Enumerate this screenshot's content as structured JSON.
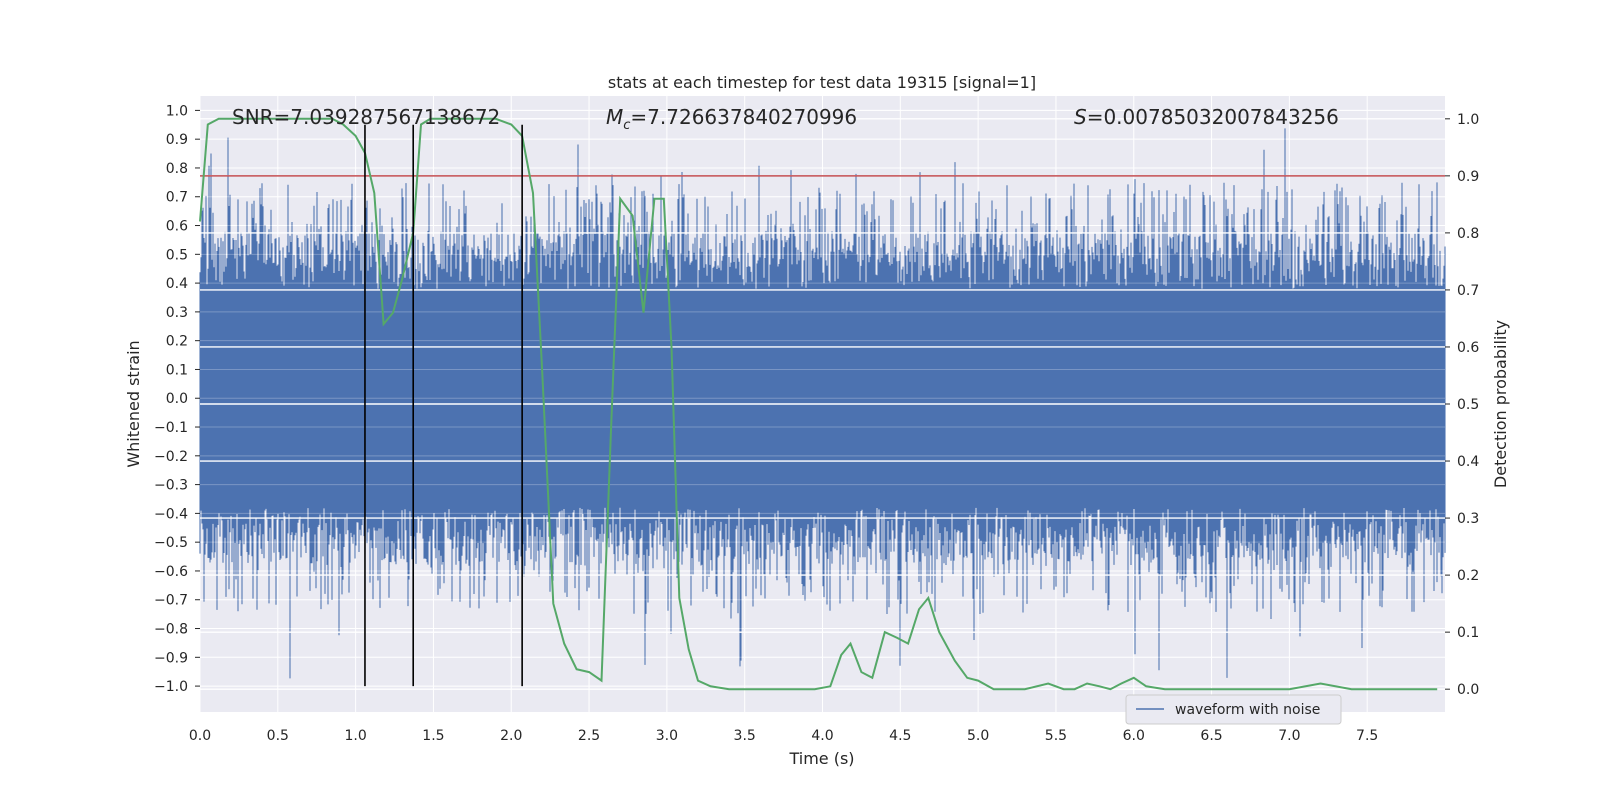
{
  "chart_data": {
    "type": "line",
    "title": "stats at each timestep for test data 19315 [signal=1]",
    "xlabel": "Time (s)",
    "ylabel": "Whitened strain",
    "y2label": "Detection probability",
    "xlim": [
      0.0,
      8.0
    ],
    "ylim": [
      -1.09,
      1.05
    ],
    "y2lim": [
      -0.04,
      1.04
    ],
    "xticks": [
      "0.0",
      "0.5",
      "1.0",
      "1.5",
      "2.0",
      "2.5",
      "3.0",
      "3.5",
      "4.0",
      "4.5",
      "5.0",
      "5.5",
      "6.0",
      "6.5",
      "7.0",
      "7.5"
    ],
    "yticks": [
      "1.0",
      "0.9",
      "0.8",
      "0.7",
      "0.6",
      "0.5",
      "0.4",
      "0.3",
      "0.2",
      "0.1",
      "0.0",
      "-0.1",
      "-0.2",
      "-0.3",
      "-0.4",
      "-0.5",
      "-0.6",
      "-0.7",
      "-0.8",
      "-0.9",
      "-1.0"
    ],
    "y2ticks": [
      "1.0",
      "0.9",
      "0.8",
      "0.7",
      "0.6",
      "0.5",
      "0.4",
      "0.3",
      "0.2",
      "0.1",
      "0.0"
    ],
    "annotations": {
      "snr": "SNR=7.039287567138672",
      "mc_symbol": "M",
      "mc_sub": "c",
      "mc_value": "=7.726637840270996",
      "s_symbol": "S",
      "s_value": "=0.00785032007843256"
    },
    "threshold": 0.9,
    "threshold_color": "#c44e52",
    "waveform": {
      "name": "waveform with noise",
      "color": "#4c72b0",
      "core_band": [
        -0.38,
        0.38
      ],
      "typical_spike_max": 0.75,
      "peak_max": 0.95,
      "peak_min": -0.99
    },
    "markers_x": [
      1.06,
      1.37,
      2.07
    ],
    "marker_range": [
      -1.0,
      0.95
    ],
    "marker_color": "#000000",
    "probability": {
      "color": "#55a868",
      "x": [
        0.0,
        0.05,
        0.12,
        0.2,
        0.3,
        0.45,
        0.6,
        0.75,
        0.85,
        0.92,
        1.0,
        1.06,
        1.12,
        1.18,
        1.24,
        1.3,
        1.37,
        1.42,
        1.48,
        1.55,
        1.62,
        1.7,
        1.8,
        1.9,
        2.0,
        2.07,
        2.14,
        2.2,
        2.27,
        2.34,
        2.42,
        2.5,
        2.58,
        2.64,
        2.7,
        2.78,
        2.85,
        2.92,
        2.98,
        3.03,
        3.08,
        3.14,
        3.2,
        3.28,
        3.4,
        3.55,
        3.75,
        3.95,
        4.05,
        4.12,
        4.18,
        4.25,
        4.32,
        4.4,
        4.48,
        4.55,
        4.62,
        4.68,
        4.75,
        4.85,
        4.93,
        5.0,
        5.1,
        5.3,
        5.45,
        5.55,
        5.62,
        5.7,
        5.78,
        5.85,
        5.92,
        6.0,
        6.08,
        6.2,
        6.4,
        6.6,
        6.8,
        7.0,
        7.2,
        7.4,
        7.6,
        7.95
      ],
      "y": [
        0.82,
        0.99,
        1.0,
        1.0,
        1.0,
        1.0,
        1.0,
        1.0,
        1.0,
        0.99,
        0.97,
        0.94,
        0.87,
        0.64,
        0.66,
        0.72,
        0.8,
        0.99,
        1.0,
        1.0,
        1.0,
        1.0,
        1.0,
        1.0,
        0.99,
        0.97,
        0.87,
        0.55,
        0.15,
        0.08,
        0.035,
        0.03,
        0.015,
        0.45,
        0.86,
        0.83,
        0.66,
        0.86,
        0.86,
        0.6,
        0.16,
        0.07,
        0.015,
        0.005,
        0.0,
        0.0,
        0.0,
        0.0,
        0.005,
        0.06,
        0.08,
        0.03,
        0.02,
        0.1,
        0.09,
        0.08,
        0.14,
        0.16,
        0.1,
        0.05,
        0.02,
        0.015,
        0.0,
        0.0,
        0.01,
        0.0,
        0.0,
        0.01,
        0.005,
        0.0,
        0.01,
        0.02,
        0.005,
        0.0,
        0.0,
        0.0,
        0.0,
        0.0,
        0.01,
        0.0,
        0.0,
        0.0
      ]
    }
  }
}
